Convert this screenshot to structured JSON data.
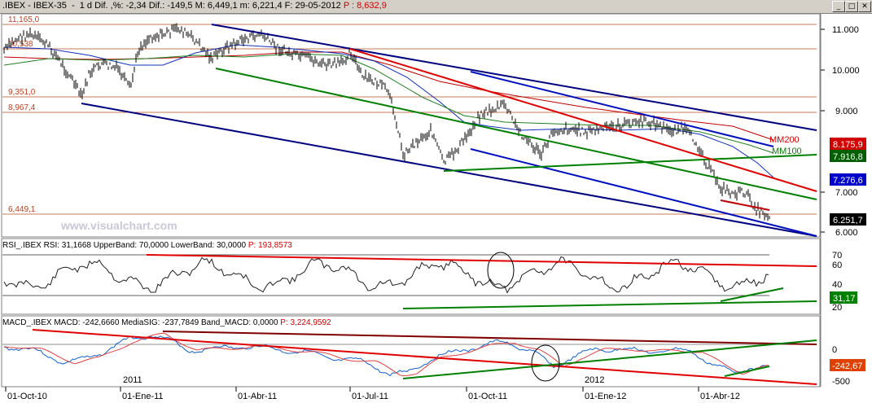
{
  "window": {
    "caption_prefix": ".IBEX - IBEX-35  -  1 d Dif. ,%: -2,34 Dif.: -149,5 M: 6,449,1 m: 6,221,4 F: 29-05-2012 ",
    "caption_p": "P : 8,632,9"
  },
  "watermark": "www.visualchart.com",
  "x_labels": [
    "01-Oct-10",
    "01-Ene-11",
    "01-Abr-11",
    "01-Jul-11",
    "01-Oct-11",
    "01-Ene-12",
    "01-Abr-12"
  ],
  "year_labels": [
    "2011",
    "2012"
  ],
  "chart_data": [
    {
      "type": "line",
      "name": "price",
      "y_ticks": [
        "11.000",
        "10.000",
        "9.000",
        "7.000",
        "6.000"
      ],
      "h_levels": [
        "11,165,0",
        "10,538",
        "9,351,0",
        "8,967,4",
        "6,449,1"
      ],
      "ma_labels": [
        "MM200",
        "MM100"
      ],
      "right_boxes": [
        {
          "text": "8.175,9",
          "color": "#d00000"
        },
        {
          "text": "7.916,8",
          "color": "#008000"
        },
        {
          "text": "7.276,6",
          "color": "#0000cc"
        },
        {
          "text": "6.251,7",
          "color": "#000000"
        }
      ],
      "ylim": [
        5900,
        11400
      ]
    },
    {
      "type": "line",
      "name": "RSI",
      "header_prefix": "RSI_.IBEX RSI: 31,1668 UpperBand: 70,0000 LowerBand: 30,0000 ",
      "header_p": "P: 193,8573",
      "y_ticks": [
        "70",
        "60",
        "40",
        "20"
      ],
      "right_box": "31,17",
      "ylim": [
        15,
        75
      ]
    },
    {
      "type": "line",
      "name": "MACD",
      "header_prefix": "MACD_.IBEX MACD: -242,6660 MediaSIG: -237,7849 Band_MACD: 0,0000 ",
      "header_p": "P: 3,224,9592",
      "y_ticks": [
        "0",
        "-500"
      ],
      "right_box": "-242,67"
    }
  ]
}
